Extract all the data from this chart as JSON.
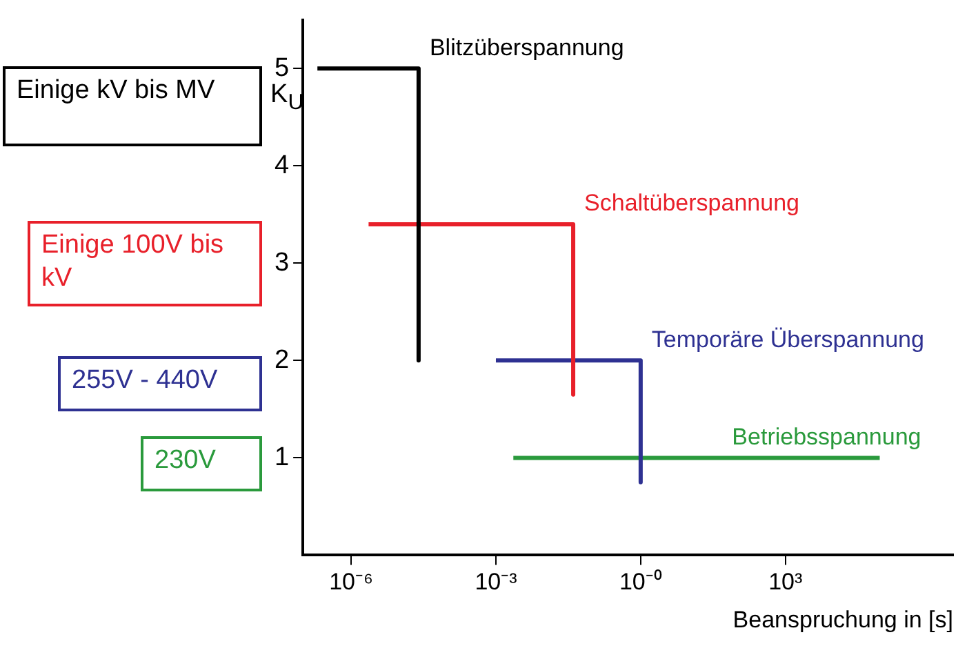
{
  "chart_data": {
    "type": "line",
    "xlabel": "Beanspruchung in [s]",
    "ylabel": "K$_{U}$",
    "log": "x",
    "grid": false,
    "legend": false,
    "marker": "none",
    "line_style": "solid",
    "xlim": [
      1e-07,
      3000000.0
    ],
    "xticks": [
      {
        "value": 1e-06,
        "label": "10⁻⁶"
      },
      {
        "value": 0.001,
        "label": "10⁻³"
      },
      {
        "value": 1,
        "label": "10⁻⁰"
      },
      {
        "value": 1000,
        "label": "10³"
      }
    ],
    "ylim": [
      0,
      5.5
    ],
    "yticks": [
      1,
      2,
      3,
      4,
      5
    ],
    "series": [
      {
        "name": "Blitzüberspannung",
        "color": "#000000",
        "x": [
          2e-07,
          2.5e-05,
          2.5e-05
        ],
        "values": [
          5,
          5,
          2
        ]
      },
      {
        "name": "Schaltüberspannung",
        "color": "#e8202a",
        "x": [
          2.3e-06,
          0.04,
          0.04
        ],
        "values": [
          3.4,
          3.4,
          1.65
        ]
      },
      {
        "name": "Temporäre Überspannung",
        "color": "#2e3192",
        "x": [
          0.001,
          1,
          1
        ],
        "values": [
          2,
          2,
          0.75
        ]
      },
      {
        "name": "Betriebsspannung",
        "color": "#2a9a3c",
        "x": [
          0.0023,
          90000
        ],
        "values": [
          1,
          1
        ]
      }
    ],
    "annotations": [
      "Einige kV bis MV",
      "Einige 100V bis kV",
      "255V - 440V",
      "230V"
    ]
  }
}
